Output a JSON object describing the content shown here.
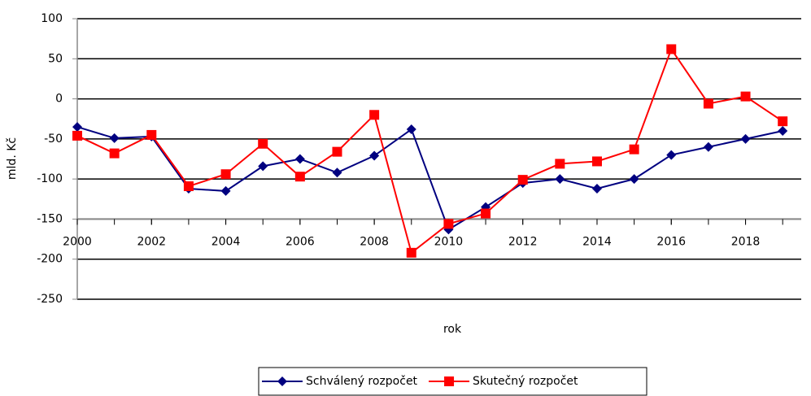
{
  "chart_data": {
    "type": "line",
    "x": [
      2000,
      2001,
      2002,
      2003,
      2004,
      2005,
      2006,
      2007,
      2008,
      2009,
      2010,
      2011,
      2012,
      2013,
      2014,
      2015,
      2016,
      2017,
      2018,
      2019
    ],
    "series": [
      {
        "name": "Schválený rozpočet",
        "color": "#000080",
        "marker": "diamond",
        "values": [
          -35,
          -49,
          -47,
          -112,
          -115,
          -84,
          -75,
          -92,
          -71,
          -38,
          -163,
          -135,
          -105,
          -100,
          -112,
          -100,
          -70,
          -60,
          -50,
          -40
        ]
      },
      {
        "name": "Skutečný rozpočet",
        "color": "#ff0000",
        "marker": "square",
        "values": [
          -46,
          -68,
          -45,
          -109,
          -94,
          -56,
          -97,
          -66,
          -20,
          -192,
          -156,
          -143,
          -101,
          -81,
          -78,
          -63,
          62,
          -6,
          3,
          -28
        ]
      }
    ],
    "xlabel": "rok",
    "ylabel": "mld. Kč",
    "xlim": [
      2000,
      2019.5
    ],
    "xticks": [
      2000,
      2002,
      2004,
      2006,
      2008,
      2010,
      2012,
      2014,
      2016,
      2018
    ],
    "ylim": [
      -250,
      100
    ],
    "yticks": [
      -250,
      -200,
      -150,
      -100,
      -50,
      0,
      50,
      100
    ],
    "x_axis_at": -150,
    "grid": true,
    "legend": "bottom"
  }
}
